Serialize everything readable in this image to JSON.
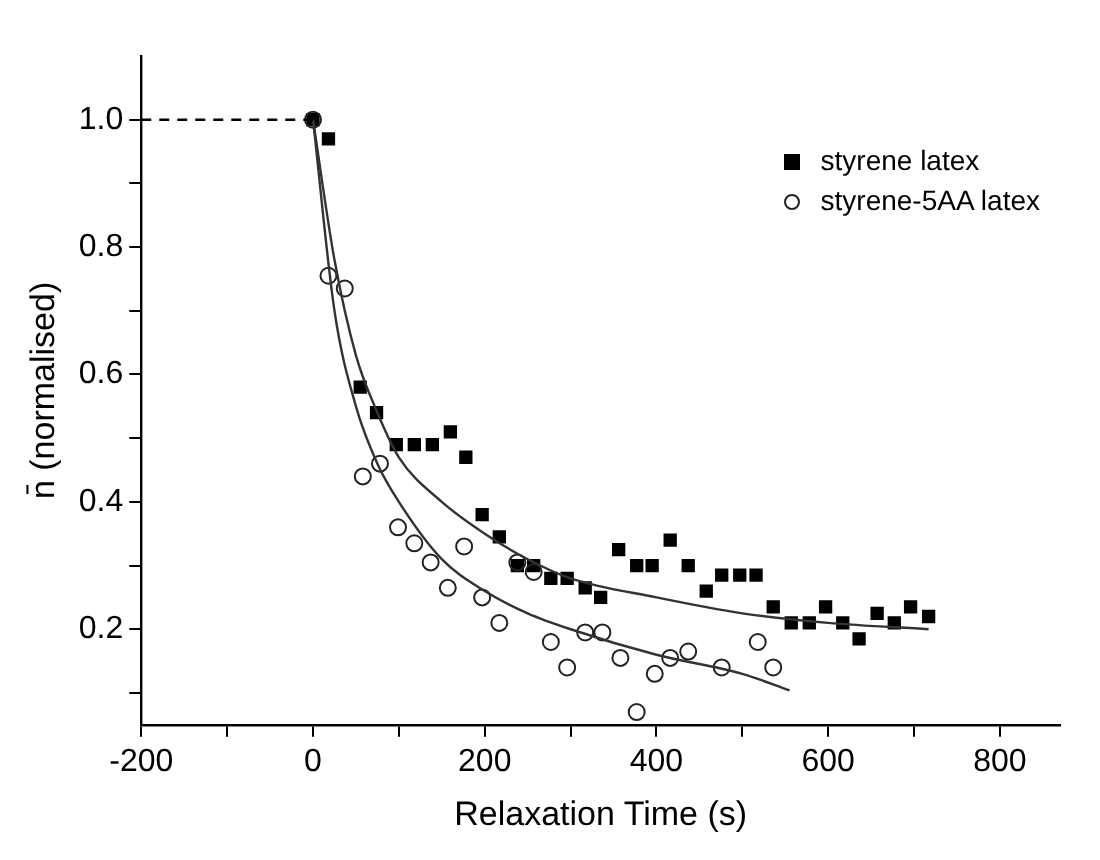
{
  "chart_data": {
    "type": "scatter",
    "xlabel": "Relaxation Time (s)",
    "ylabel": "n̄ (normalised)",
    "xlim": [
      -200,
      870
    ],
    "ylim": [
      0.05,
      1.1
    ],
    "xticks": [
      -200,
      {
        "value": -100,
        "label": null
      },
      0,
      {
        "value": 100,
        "label": null
      },
      200,
      {
        "value": 300,
        "label": null
      },
      400,
      {
        "value": 500,
        "label": null
      },
      600,
      {
        "value": 700,
        "label": null
      },
      800
    ],
    "yticks": [
      {
        "value": 0.1,
        "label": null
      },
      0.2,
      {
        "value": 0.3,
        "label": null
      },
      0.4,
      {
        "value": 0.5,
        "label": null
      },
      0.6,
      {
        "value": 0.7,
        "label": null
      },
      0.8,
      {
        "value": 0.9,
        "label": null
      },
      {
        "value": 1,
        "label": "1.0"
      }
    ],
    "legend": "top right",
    "grid": false,
    "series": [
      {
        "name": "styrene latex",
        "color": "#000000",
        "marker": "square",
        "x": [
          0,
          18,
          55,
          74,
          97,
          118,
          139,
          160,
          178,
          197,
          217,
          238,
          257,
          277,
          296,
          317,
          335,
          356,
          377,
          395,
          416,
          437,
          458,
          476,
          497,
          516,
          536,
          557,
          578,
          597,
          617,
          636,
          657,
          677,
          696,
          717
        ],
        "values": [
          1.0,
          0.97,
          0.58,
          0.54,
          0.49,
          0.49,
          0.49,
          0.51,
          0.47,
          0.38,
          0.345,
          0.3,
          0.3,
          0.28,
          0.28,
          0.265,
          0.25,
          0.325,
          0.3,
          0.3,
          0.34,
          0.3,
          0.26,
          0.285,
          0.285,
          0.285,
          0.235,
          0.21,
          0.21,
          0.235,
          0.21,
          0.185,
          0.225,
          0.21,
          0.235,
          0.22
        ]
      },
      {
        "name": "styrene-5AA latex",
        "color": "#222222",
        "marker": "circle",
        "x": [
          0,
          18,
          37,
          58,
          78,
          99,
          118,
          137,
          157,
          176,
          197,
          217,
          238,
          257,
          277,
          296,
          317,
          337,
          358,
          377,
          398,
          416,
          437,
          476,
          518,
          536
        ],
        "values": [
          1.0,
          0.755,
          0.735,
          0.44,
          0.46,
          0.36,
          0.335,
          0.305,
          0.265,
          0.33,
          0.25,
          0.21,
          0.305,
          0.29,
          0.18,
          0.14,
          0.195,
          0.195,
          0.155,
          0.07,
          0.13,
          0.155,
          0.165,
          0.14,
          0.18,
          0.14
        ]
      },
      {
        "type": "line",
        "color": "#333333",
        "marker": "none",
        "line_style": "solid",
        "x": [
          0,
          25,
          50,
          75,
          100,
          150,
          200,
          250,
          300,
          400,
          500,
          600,
          717
        ],
        "values": [
          1.0,
          0.78,
          0.63,
          0.54,
          0.47,
          0.4,
          0.35,
          0.31,
          0.28,
          0.25,
          0.225,
          0.21,
          0.2
        ]
      },
      {
        "type": "line",
        "color": "#333333",
        "marker": "none",
        "line_style": "solid",
        "x": [
          0,
          25,
          50,
          75,
          100,
          150,
          200,
          250,
          300,
          400,
          500,
          555
        ],
        "values": [
          1.0,
          0.7,
          0.55,
          0.46,
          0.4,
          0.31,
          0.26,
          0.225,
          0.2,
          0.16,
          0.13,
          0.104
        ]
      },
      {
        "type": "line",
        "color": "#000000",
        "marker": "none",
        "line_style": "dashed",
        "x": [
          -200,
          0
        ],
        "values": [
          1.0,
          1.0
        ]
      }
    ]
  }
}
